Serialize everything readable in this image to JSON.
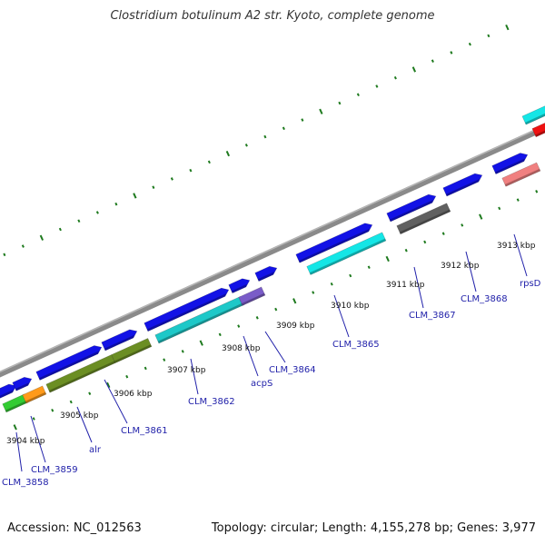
{
  "title": "Clostridium botulinum A2 str. Kyoto, complete genome",
  "footer": {
    "accession": "Accession: NC_012563",
    "topology": "Topology: circular; Length: 4,155,278 bp; Genes: 3,977"
  },
  "colors": {
    "backbone": "#8a8a8a",
    "tick": "#1e7a1e",
    "cds_blue": "#1212e6",
    "cyan": "#14e6e6",
    "teal": "#1ec8c8",
    "olive": "#6b8e23",
    "orange": "#ff9a1a",
    "green": "#33cc33",
    "grey": "#606060",
    "purple": "#7a5cc8",
    "salmon": "#f08080",
    "red": "#ee1111",
    "label": "#2222aa"
  },
  "kbp_labels": [
    "3904 kbp",
    "3905 kbp",
    "3906 kbp",
    "3907 kbp",
    "3908 kbp",
    "3909 kbp",
    "3910 kbp",
    "3911 kbp",
    "3912 kbp",
    "3913 kbp"
  ],
  "gene_labels": [
    "CLM_3858",
    "CLM_3859",
    "alr",
    "CLM_3861",
    "CLM_3862",
    "acpS",
    "CLM_3864",
    "CLM_3865",
    "CLM_3867",
    "CLM_3868",
    "rpsD"
  ]
}
